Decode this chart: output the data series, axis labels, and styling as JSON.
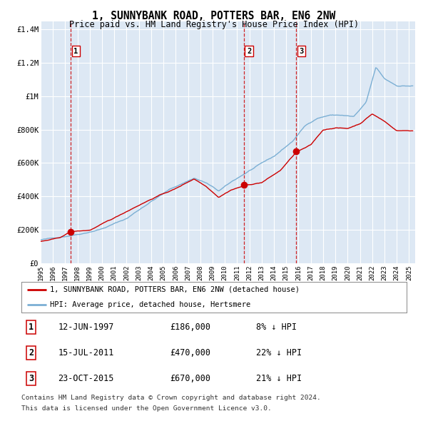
{
  "title": "1, SUNNYBANK ROAD, POTTERS BAR, EN6 2NW",
  "subtitle": "Price paid vs. HM Land Registry's House Price Index (HPI)",
  "legend_line1": "1, SUNNYBANK ROAD, POTTERS BAR, EN6 2NW (detached house)",
  "legend_line2": "HPI: Average price, detached house, Hertsmere",
  "footer1": "Contains HM Land Registry data © Crown copyright and database right 2024.",
  "footer2": "This data is licensed under the Open Government Licence v3.0.",
  "hpi_color": "#7bafd4",
  "price_color": "#cc0000",
  "bg_color": "#dde8f4",
  "annotation_color": "#cc0000",
  "grid_color": "#ffffff",
  "transactions": [
    {
      "label": "1",
      "date_num": 1997.45,
      "price": 186000,
      "text": "12-JUN-1997",
      "amount": "£186,000",
      "hpi_pct": "8% ↓ HPI"
    },
    {
      "label": "2",
      "date_num": 2011.54,
      "price": 470000,
      "text": "15-JUL-2011",
      "amount": "£470,000",
      "hpi_pct": "22% ↓ HPI"
    },
    {
      "label": "3",
      "date_num": 2015.81,
      "price": 670000,
      "text": "23-OCT-2015",
      "amount": "£670,000",
      "hpi_pct": "21% ↓ HPI"
    }
  ],
  "xlim": [
    1995.0,
    2025.5
  ],
  "ylim": [
    0,
    1450000
  ],
  "yticks": [
    0,
    200000,
    400000,
    600000,
    800000,
    1000000,
    1200000,
    1400000
  ],
  "ytick_labels": [
    "£0",
    "£200K",
    "£400K",
    "£600K",
    "£800K",
    "£1M",
    "£1.2M",
    "£1.4M"
  ]
}
